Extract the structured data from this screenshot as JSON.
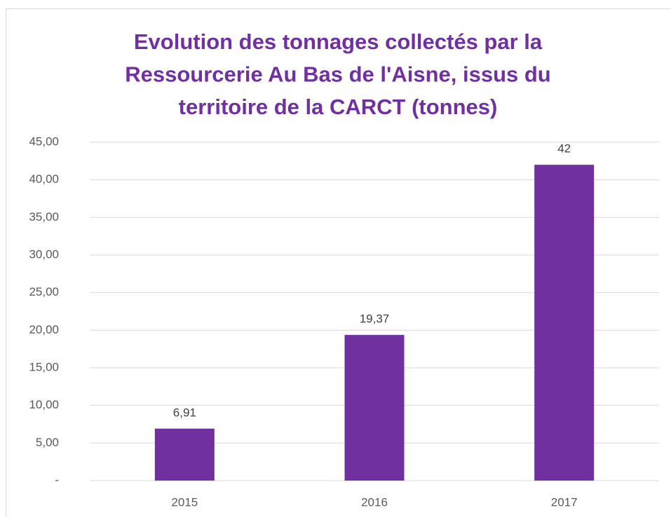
{
  "chart_data": {
    "type": "bar",
    "title": [
      "Evolution des tonnages collectés par la",
      "Ressourcerie Au Bas de l'Aisne, issus du",
      "territoire de la CARCT (tonnes)"
    ],
    "categories": [
      "2015",
      "2016",
      "2017"
    ],
    "values": [
      6.91,
      19.37,
      42
    ],
    "value_labels": [
      "6,91",
      "19,37",
      "42"
    ],
    "color": "#7030a0",
    "ylim": [
      0,
      45
    ],
    "yticks": [
      {
        "value": 0,
        "label": "-"
      },
      {
        "value": 5,
        "label": "5,00"
      },
      {
        "value": 10,
        "label": "10,00"
      },
      {
        "value": 15,
        "label": "15,00"
      },
      {
        "value": 20,
        "label": "20,00"
      },
      {
        "value": 25,
        "label": "25,00"
      },
      {
        "value": 30,
        "label": "30,00"
      },
      {
        "value": 35,
        "label": "35,00"
      },
      {
        "value": 40,
        "label": "40,00"
      },
      {
        "value": 45,
        "label": "45,00"
      }
    ],
    "grid": true
  }
}
